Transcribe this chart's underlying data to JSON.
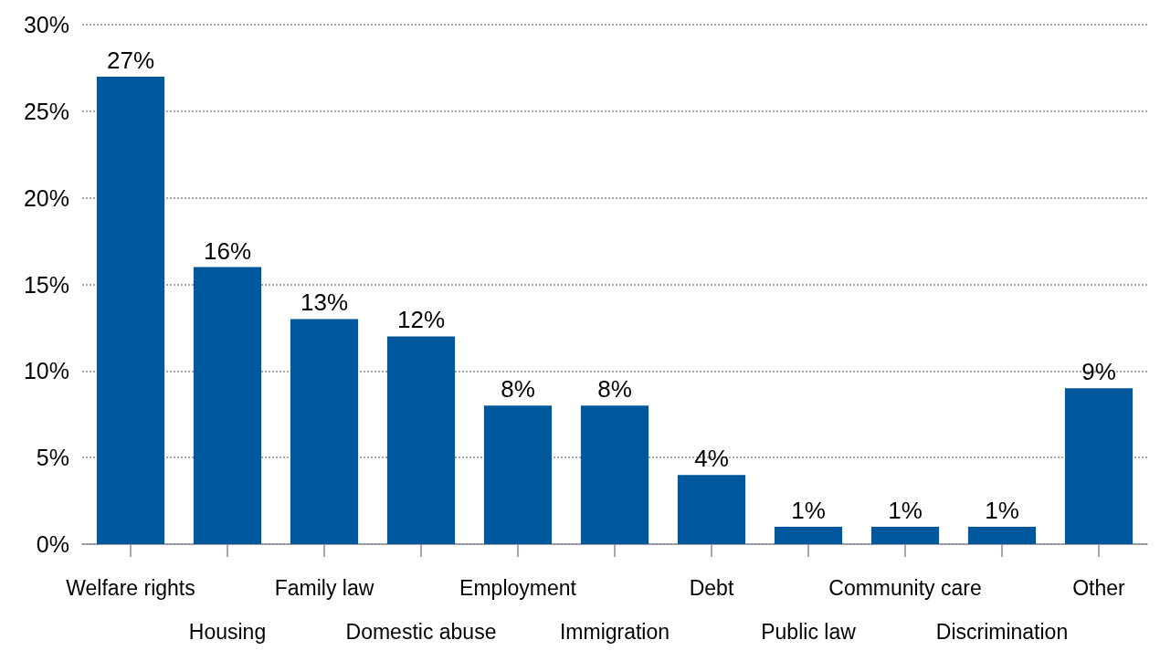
{
  "chart_data": {
    "type": "bar",
    "categories": [
      "Welfare rights",
      "Housing",
      "Family law",
      "Domestic abuse",
      "Employment",
      "Immigration",
      "Debt",
      "Public law",
      "Community care",
      "Discrimination",
      "Other"
    ],
    "values": [
      27,
      16,
      13,
      12,
      8,
      8,
      4,
      1,
      1,
      1,
      9
    ],
    "value_labels": [
      "27%",
      "16%",
      "13%",
      "12%",
      "8%",
      "8%",
      "4%",
      "1%",
      "1%",
      "1%",
      "9%"
    ],
    "color": "#00589c",
    "ylim": [
      0,
      30
    ],
    "yticks": [
      {
        "value": 0,
        "label": "0%"
      },
      {
        "value": 5,
        "label": "5%"
      },
      {
        "value": 10,
        "label": "10%"
      },
      {
        "value": 15,
        "label": "15%"
      },
      {
        "value": 20,
        "label": "20%"
      },
      {
        "value": 25,
        "label": "25%"
      },
      {
        "value": 30,
        "label": "30%"
      }
    ],
    "grid": "y"
  }
}
